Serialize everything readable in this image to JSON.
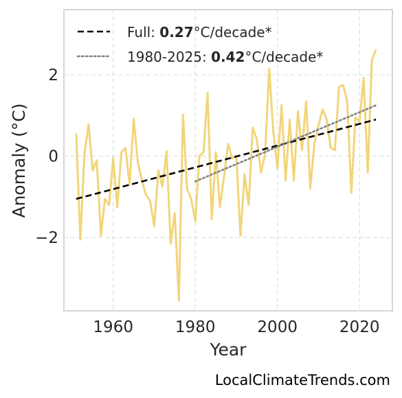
{
  "chart_data": {
    "type": "line",
    "title": "",
    "xlabel": "Year",
    "ylabel": "Anomaly (°C)",
    "xlim": [
      1948,
      2028
    ],
    "ylim": [
      -3.8,
      3.6
    ],
    "x_ticks": [
      1960,
      1980,
      2000,
      2020
    ],
    "y_ticks": [
      2,
      0,
      -2
    ],
    "y_tick_labels": [
      "2",
      "0",
      "−2"
    ],
    "grid": true,
    "legend_position": "top-left",
    "series": [
      {
        "color": "#f2d57a",
        "style": "solid",
        "x": [
          1951,
          1952,
          1953,
          1954,
          1955,
          1956,
          1957,
          1958,
          1959,
          1960,
          1961,
          1962,
          1963,
          1964,
          1965,
          1966,
          1967,
          1968,
          1969,
          1970,
          1971,
          1972,
          1973,
          1974,
          1975,
          1976,
          1977,
          1978,
          1979,
          1980,
          1981,
          1982,
          1983,
          1984,
          1985,
          1986,
          1987,
          1988,
          1989,
          1990,
          1991,
          1992,
          1993,
          1994,
          1995,
          1996,
          1997,
          1998,
          1999,
          2000,
          2001,
          2002,
          2003,
          2004,
          2005,
          2006,
          2007,
          2008,
          2009,
          2010,
          2011,
          2012,
          2013,
          2014,
          2015,
          2016,
          2017,
          2018,
          2019,
          2020,
          2021,
          2022,
          2023,
          2024
        ],
        "y": [
          0.55,
          -2.05,
          0.05,
          0.78,
          -0.35,
          -0.1,
          -1.95,
          -1.05,
          -1.2,
          -0.05,
          -1.25,
          0.1,
          0.2,
          -0.7,
          0.92,
          -0.15,
          -0.6,
          -0.95,
          -1.1,
          -1.72,
          -0.35,
          -0.75,
          0.12,
          -2.15,
          -1.4,
          -3.55,
          1.02,
          -0.8,
          -1.05,
          -1.6,
          0.0,
          0.1,
          1.55,
          -1.55,
          0.1,
          -1.25,
          -0.5,
          0.3,
          -0.05,
          0.0,
          -1.95,
          -0.45,
          -1.2,
          0.7,
          0.4,
          -0.4,
          0.05,
          2.15,
          0.6,
          -0.3,
          1.25,
          -0.6,
          0.9,
          -0.6,
          1.1,
          0.15,
          1.35,
          -0.8,
          0.3,
          0.75,
          1.15,
          0.9,
          0.2,
          0.15,
          1.7,
          1.75,
          1.35,
          -0.9,
          0.95,
          0.85,
          1.92,
          -0.4,
          2.35,
          2.62
        ]
      },
      {
        "name": "Full",
        "color": "#000000",
        "style": "dashed",
        "x": [
          1951,
          2024
        ],
        "y": [
          -1.05,
          0.9
        ]
      },
      {
        "name": "1980-2025",
        "color": "#808080",
        "style": "dotted",
        "x": [
          1980,
          2024
        ],
        "y": [
          -0.62,
          1.25
        ]
      }
    ],
    "legend": [
      {
        "prefix": "Full: ",
        "value": "0.27",
        "suffix": "°C/decade*",
        "style": "dashed",
        "color": "#000000"
      },
      {
        "prefix": "1980-2025: ",
        "value": "0.42",
        "suffix": "°C/decade*",
        "style": "dotted",
        "color": "#808080"
      }
    ]
  },
  "source": "LocalClimateTrends.com"
}
